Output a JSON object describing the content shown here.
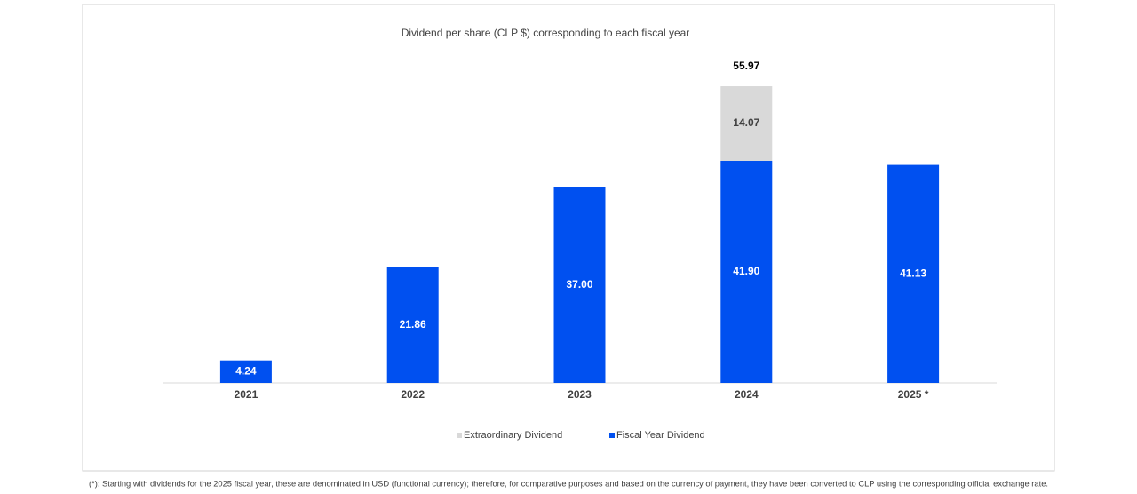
{
  "chart_data": {
    "type": "stacked-bar",
    "title": "Dividend per share (CLP $)  corresponding to each fiscal year",
    "categories": [
      "2021",
      "2022",
      "2023",
      "2024",
      "2025 *"
    ],
    "series": [
      {
        "name": "Fiscal Year Dividend",
        "color": "#0050f0",
        "values": [
          4.24,
          21.86,
          37.0,
          41.9,
          41.13
        ],
        "value_labels": [
          "4.24",
          "21.86",
          "37.00",
          "41.90",
          "41.13"
        ]
      },
      {
        "name": "Extraordinary Dividend",
        "color": "#d9d9d9",
        "values": [
          null,
          null,
          null,
          14.07,
          null
        ]
      }
    ],
    "totals": [
      null,
      null,
      null,
      55.97,
      null
    ],
    "ylim": [
      0,
      60
    ],
    "legend": "bottom",
    "footnote": "(*): Starting with dividends for the 2025 fiscal year, these are denominated in USD (functional currency); therefore, for comparative purposes and based on the currency of payment, they have been converted to CLP using the corresponding official exchange rate."
  }
}
